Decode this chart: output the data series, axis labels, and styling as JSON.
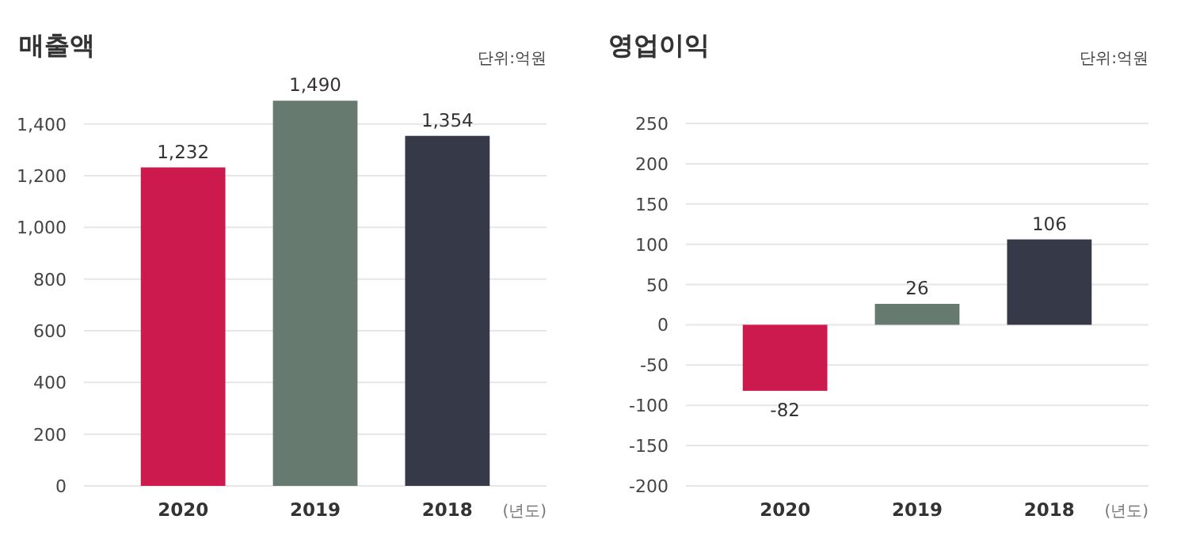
{
  "chart_data": [
    {
      "type": "bar",
      "title": "매출액",
      "annotations": [
        "단위:억원"
      ],
      "xlabel": "(년도)",
      "categories": [
        "2020",
        "2019",
        "2018"
      ],
      "colors": [
        "#cc1a4e",
        "#667a70",
        "#363a48"
      ],
      "values": [
        1232,
        1490,
        1354
      ],
      "value_labels": [
        "1,232",
        "1,490",
        "1,354"
      ],
      "ylim": [
        0,
        1500
      ],
      "yticks": [
        0,
        200,
        400,
        600,
        800,
        {
          "value": 1000,
          "label": "1,000"
        },
        {
          "value": 1200,
          "label": "1,200"
        },
        {
          "value": 1400,
          "label": "1,400"
        }
      ],
      "grid": "y"
    },
    {
      "type": "bar",
      "title": "영업이익",
      "annotations": [
        "단위:억원"
      ],
      "xlabel": "(년도)",
      "categories": [
        "2020",
        "2019",
        "2018"
      ],
      "colors": [
        "#cc1a4e",
        "#667a70",
        "#363a48"
      ],
      "values": [
        -82,
        26,
        106
      ],
      "data_labels": true,
      "ylim": [
        -200,
        250
      ],
      "yticks": [
        -200,
        -150,
        -100,
        -50,
        0,
        50,
        100,
        150,
        200,
        250
      ],
      "grid": "y"
    }
  ]
}
